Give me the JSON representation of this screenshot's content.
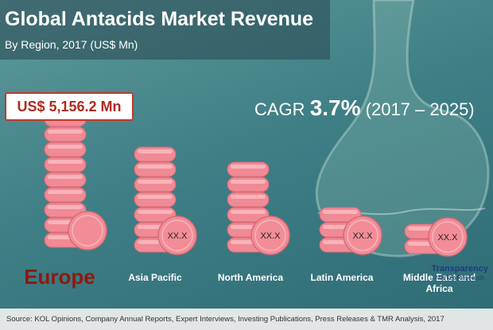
{
  "header": {
    "title": "Global Antacids Market Revenue",
    "subtitle": "By Region, 2017 (US$ Mn)"
  },
  "highlight": "US$ 5,156.2 Mn",
  "cagr": {
    "label": "CAGR",
    "value": "3.7%",
    "period": "(2017 – 2025)"
  },
  "regions": [
    {
      "name": "Europe"
    },
    {
      "name": "Asia Pacific",
      "value": "XX.X"
    },
    {
      "name": "North America",
      "value": "XX.X"
    },
    {
      "name": "Latin America",
      "value": "XX.X"
    },
    {
      "name": "Middle East and Africa",
      "value": "XX.X"
    }
  ],
  "source": "Source: KOL Opinions, Company Annual Reports, Expert Interviews, Investing Publications, Press Releases & TMR Analysis, 2017",
  "logo": {
    "name": "Transparency",
    "sub": "Market Research"
  }
}
